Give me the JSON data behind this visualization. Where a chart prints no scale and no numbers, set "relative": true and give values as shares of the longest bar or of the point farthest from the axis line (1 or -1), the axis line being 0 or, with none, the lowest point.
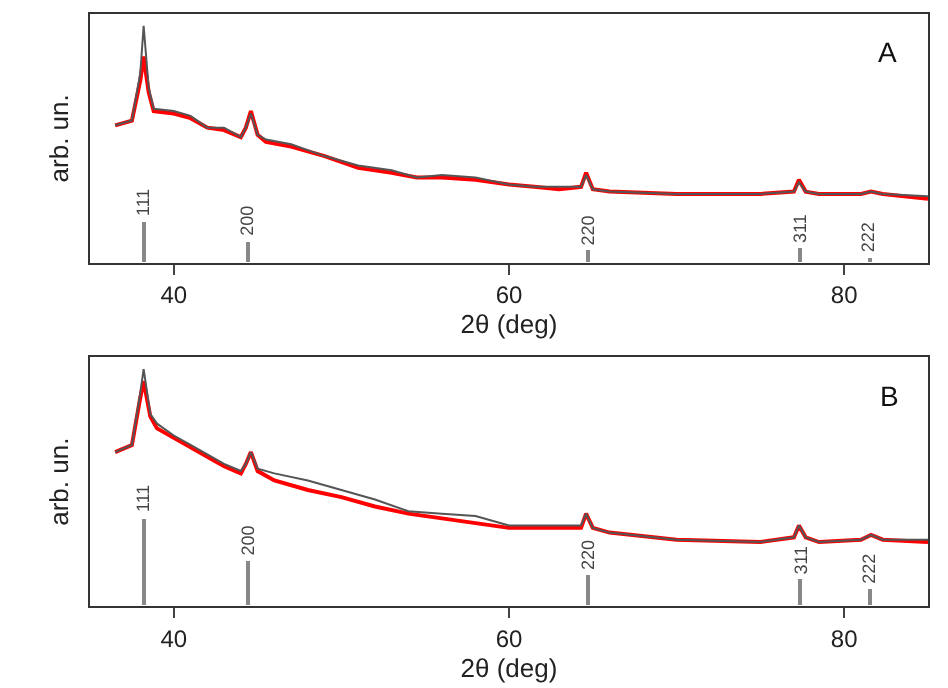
{
  "chart_data": [
    {
      "type": "line",
      "xlabel": "2θ (deg)",
      "ylabel": "arb. un.",
      "relative": true,
      "xlim": [
        35,
        85
      ],
      "xticks": [
        40,
        60,
        80
      ],
      "series": [
        {
          "color": "#ff0000",
          "x": [
            36.5,
            37.5,
            38.0,
            38.2,
            38.5,
            38.8,
            40,
            41,
            42,
            43,
            44,
            44.3,
            44.6,
            45,
            45.5,
            47,
            49,
            51,
            53,
            54.5,
            56,
            58,
            60,
            61.5,
            63,
            64.3,
            64.6,
            65,
            66,
            70,
            75,
            77.0,
            77.3,
            77.7,
            78.5,
            81,
            81.6,
            82.3,
            85
          ],
          "values": [
            0.58,
            0.6,
            0.77,
            0.87,
            0.72,
            0.64,
            0.63,
            0.61,
            0.57,
            0.56,
            0.53,
            0.57,
            0.64,
            0.54,
            0.51,
            0.49,
            0.45,
            0.4,
            0.38,
            0.36,
            0.36,
            0.35,
            0.33,
            0.32,
            0.31,
            0.32,
            0.38,
            0.31,
            0.3,
            0.29,
            0.29,
            0.3,
            0.35,
            0.3,
            0.29,
            0.29,
            0.3,
            0.29,
            0.27
          ]
        },
        {
          "color": "#555555",
          "x": [
            36.5,
            37.5,
            38.0,
            38.2,
            38.5,
            38.8,
            40,
            41,
            42,
            43,
            44,
            44.3,
            44.6,
            45,
            45.5,
            47,
            49,
            51,
            53,
            54.5,
            56,
            58,
            60,
            61.5,
            63,
            64.3,
            64.6,
            65,
            66,
            70,
            75,
            77.0,
            77.3,
            77.7,
            78.5,
            81,
            81.6,
            82.3,
            85
          ],
          "values": [
            0.58,
            0.6,
            0.8,
            1.0,
            0.74,
            0.65,
            0.64,
            0.62,
            0.57,
            0.57,
            0.53,
            0.57,
            0.63,
            0.54,
            0.52,
            0.5,
            0.45,
            0.41,
            0.39,
            0.36,
            0.37,
            0.36,
            0.33,
            0.32,
            0.32,
            0.32,
            0.37,
            0.31,
            0.3,
            0.29,
            0.29,
            0.3,
            0.34,
            0.3,
            0.29,
            0.29,
            0.3,
            0.29,
            0.28
          ]
        },
        {
          "type": "bar",
          "color": "#888888",
          "x": [
            38.2,
            44.4,
            64.7,
            77.4,
            81.5
          ],
          "values": [
            0.17,
            0.09,
            0.05,
            0.06,
            0.02
          ]
        }
      ],
      "annotations": [
        "A",
        {
          "text": "111",
          "x": 38.2,
          "y": 0.17
        },
        {
          "text": "200",
          "x": 44.4,
          "y": 0.09
        },
        {
          "text": "220",
          "x": 64.7,
          "y": 0.05
        },
        {
          "text": "311",
          "x": 77.4,
          "y": 0.06
        },
        {
          "text": "222",
          "x": 81.5,
          "y": 0.02
        }
      ]
    },
    {
      "type": "line",
      "xlabel": "2θ (deg)",
      "ylabel": "arb. un.",
      "relative": true,
      "xlim": [
        35,
        85
      ],
      "xticks": [
        40,
        60,
        80
      ],
      "series": [
        {
          "color": "#ff0000",
          "x": [
            36.5,
            37.5,
            38.0,
            38.2,
            38.6,
            39,
            40,
            41,
            42,
            43,
            44,
            44.3,
            44.6,
            45,
            46,
            48,
            50,
            52,
            54,
            56,
            58,
            60,
            62,
            64.3,
            64.6,
            65,
            66,
            70,
            75,
            77.0,
            77.3,
            77.7,
            78.5,
            81,
            81.6,
            82.3,
            85
          ],
          "values": [
            0.65,
            0.68,
            0.88,
            0.95,
            0.8,
            0.75,
            0.71,
            0.67,
            0.63,
            0.59,
            0.56,
            0.6,
            0.65,
            0.57,
            0.53,
            0.49,
            0.46,
            0.42,
            0.39,
            0.37,
            0.35,
            0.33,
            0.33,
            0.33,
            0.39,
            0.33,
            0.31,
            0.28,
            0.27,
            0.29,
            0.34,
            0.29,
            0.27,
            0.28,
            0.3,
            0.28,
            0.27
          ]
        },
        {
          "color": "#555555",
          "x": [
            36.5,
            37.5,
            38.0,
            38.2,
            38.6,
            39,
            40,
            41,
            42,
            43,
            44,
            44.3,
            44.6,
            45,
            46,
            48,
            50,
            52,
            54,
            56,
            58,
            60,
            62,
            64.3,
            64.6,
            65,
            66,
            70,
            75,
            77.0,
            77.3,
            77.7,
            78.5,
            81,
            81.6,
            82.3,
            85
          ],
          "values": [
            0.65,
            0.68,
            0.9,
            1.0,
            0.81,
            0.77,
            0.72,
            0.68,
            0.64,
            0.6,
            0.57,
            0.6,
            0.65,
            0.58,
            0.56,
            0.53,
            0.49,
            0.45,
            0.4,
            0.39,
            0.38,
            0.34,
            0.34,
            0.34,
            0.39,
            0.33,
            0.31,
            0.28,
            0.27,
            0.29,
            0.34,
            0.29,
            0.27,
            0.28,
            0.3,
            0.28,
            0.28
          ]
        },
        {
          "type": "bar",
          "color": "#888888",
          "x": [
            38.2,
            44.4,
            64.7,
            77.4,
            81.5
          ],
          "values": [
            0.37,
            0.19,
            0.13,
            0.11,
            0.07
          ]
        }
      ],
      "annotations": [
        "B",
        {
          "text": "111",
          "x": 38.2,
          "y": 0.37
        },
        {
          "text": "200",
          "x": 44.4,
          "y": 0.19
        },
        {
          "text": "220",
          "x": 64.7,
          "y": 0.13
        },
        {
          "text": "311",
          "x": 77.4,
          "y": 0.11
        },
        {
          "text": "222",
          "x": 81.5,
          "y": 0.07
        }
      ]
    }
  ]
}
